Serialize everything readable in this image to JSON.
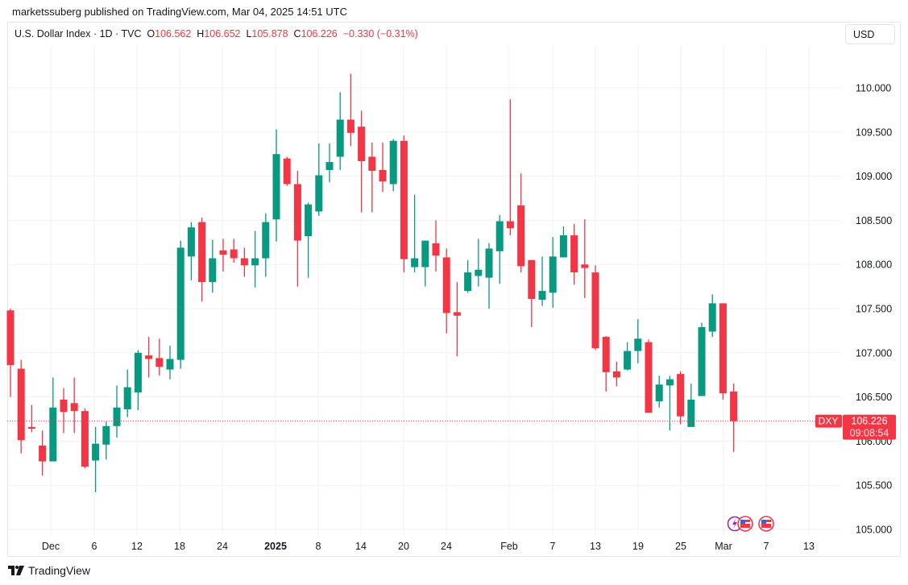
{
  "published": "marketssuberg published on TradingView.com, Mar 04, 2025 14:51 UTC",
  "legend": {
    "symbol": "U.S. Dollar Index · 1D · TVC",
    "o_label": "O",
    "o": "106.562",
    "h_label": "H",
    "h": "106.652",
    "l_label": "L",
    "l": "105.878",
    "c_label": "C",
    "c": "106.226",
    "change": "−0.330 (−0.31%)"
  },
  "currency_button": "USD",
  "footer": {
    "brand": "TradingView"
  },
  "colors": {
    "up": "#089981",
    "down": "#f23645",
    "grid": "#f0f1f3"
  },
  "chart_data": {
    "type": "candlestick",
    "title": "U.S. Dollar Index · 1D · TVC",
    "ylim": [
      104.9,
      110.45
    ],
    "grid": true,
    "y_ticks": [
      "110.000",
      "109.500",
      "109.000",
      "108.500",
      "108.000",
      "107.500",
      "107.000",
      "106.500",
      "106.000",
      "105.500",
      "105.000"
    ],
    "x_ticks": [
      {
        "label": "Dec"
      },
      {
        "label": "6"
      },
      {
        "label": "12"
      },
      {
        "label": "18"
      },
      {
        "label": "24"
      },
      {
        "label": "2025",
        "bold": true
      },
      {
        "label": "8"
      },
      {
        "label": "14"
      },
      {
        "label": "20"
      },
      {
        "label": "24"
      },
      {
        "label": "Feb"
      },
      {
        "label": "7"
      },
      {
        "label": "13"
      },
      {
        "label": "19"
      },
      {
        "label": "25"
      },
      {
        "label": "Mar"
      },
      {
        "label": "7"
      },
      {
        "label": "13"
      }
    ],
    "ohlc": [
      [
        107.48,
        107.5,
        106.5,
        106.86
      ],
      [
        106.82,
        106.92,
        105.86,
        106.01
      ],
      [
        106.16,
        106.41,
        106.1,
        106.14
      ],
      [
        105.95,
        106.12,
        105.61,
        105.77
      ],
      [
        105.77,
        106.72,
        105.77,
        106.38
      ],
      [
        106.47,
        106.6,
        106.09,
        106.33
      ],
      [
        106.43,
        106.72,
        106.09,
        106.34
      ],
      [
        106.34,
        106.37,
        105.69,
        105.71
      ],
      [
        105.78,
        106.16,
        105.42,
        105.97
      ],
      [
        105.96,
        106.22,
        105.79,
        106.17
      ],
      [
        106.17,
        106.63,
        106.04,
        106.38
      ],
      [
        106.36,
        106.81,
        106.27,
        106.61
      ],
      [
        106.55,
        107.03,
        106.35,
        107.0
      ],
      [
        106.97,
        107.18,
        106.72,
        106.93
      ],
      [
        106.94,
        107.16,
        106.74,
        106.84
      ],
      [
        106.81,
        107.08,
        106.7,
        106.93
      ],
      [
        106.92,
        108.27,
        106.82,
        108.19
      ],
      [
        108.09,
        108.48,
        107.82,
        108.42
      ],
      [
        108.48,
        108.53,
        107.58,
        107.8
      ],
      [
        107.8,
        108.28,
        107.68,
        108.07
      ],
      [
        108.16,
        108.29,
        107.92,
        108.11
      ],
      [
        108.17,
        108.29,
        108.02,
        108.07
      ],
      [
        108.07,
        108.19,
        107.86,
        107.99
      ],
      [
        107.99,
        108.38,
        107.74,
        108.07
      ],
      [
        108.07,
        108.58,
        107.86,
        108.48
      ],
      [
        108.51,
        109.53,
        108.26,
        109.25
      ],
      [
        109.2,
        109.22,
        108.89,
        108.91
      ],
      [
        108.91,
        109.06,
        107.75,
        108.27
      ],
      [
        108.32,
        108.7,
        107.85,
        108.68
      ],
      [
        108.6,
        109.37,
        108.55,
        109.01
      ],
      [
        109.07,
        109.37,
        108.93,
        109.16
      ],
      [
        109.22,
        109.95,
        109.07,
        109.64
      ],
      [
        109.64,
        110.16,
        109.34,
        109.49
      ],
      [
        109.56,
        109.74,
        108.59,
        109.17
      ],
      [
        109.22,
        109.38,
        108.59,
        109.06
      ],
      [
        109.07,
        109.38,
        108.82,
        108.94
      ],
      [
        108.91,
        109.42,
        108.83,
        109.4
      ],
      [
        109.4,
        109.46,
        107.91,
        108.06
      ],
      [
        107.97,
        108.79,
        107.91,
        108.07
      ],
      [
        107.97,
        108.27,
        107.75,
        108.27
      ],
      [
        108.24,
        108.5,
        107.92,
        108.1
      ],
      [
        108.08,
        108.18,
        107.22,
        107.45
      ],
      [
        107.46,
        107.8,
        106.96,
        107.42
      ],
      [
        107.7,
        108.05,
        107.68,
        107.91
      ],
      [
        107.87,
        108.29,
        107.75,
        107.94
      ],
      [
        107.85,
        108.24,
        107.5,
        108.18
      ],
      [
        108.15,
        108.56,
        107.78,
        108.49
      ],
      [
        108.49,
        109.87,
        108.33,
        108.41
      ],
      [
        108.67,
        109.03,
        107.91,
        107.98
      ],
      [
        108.05,
        108.05,
        107.29,
        107.61
      ],
      [
        107.6,
        108.09,
        107.53,
        107.7
      ],
      [
        107.68,
        108.31,
        107.51,
        108.09
      ],
      [
        108.08,
        108.43,
        108.08,
        108.33
      ],
      [
        108.33,
        108.46,
        107.77,
        107.91
      ],
      [
        108.0,
        108.51,
        107.62,
        107.96
      ],
      [
        107.91,
        107.99,
        107.03,
        107.05
      ],
      [
        107.18,
        107.19,
        106.56,
        106.78
      ],
      [
        106.79,
        106.9,
        106.62,
        106.72
      ],
      [
        106.81,
        107.12,
        106.8,
        107.02
      ],
      [
        107.02,
        107.38,
        106.88,
        107.16
      ],
      [
        107.12,
        107.15,
        106.32,
        106.32
      ],
      [
        106.45,
        106.74,
        106.38,
        106.64
      ],
      [
        106.63,
        106.74,
        106.12,
        106.7
      ],
      [
        106.76,
        106.79,
        106.19,
        106.28
      ],
      [
        106.16,
        106.65,
        106.16,
        106.47
      ],
      [
        106.51,
        107.34,
        106.51,
        107.29
      ],
      [
        107.24,
        107.66,
        107.18,
        107.56
      ],
      [
        107.56,
        107.56,
        106.47,
        106.54
      ],
      [
        106.562,
        106.652,
        105.878,
        106.226
      ]
    ],
    "last_price": {
      "symbol": "DXY",
      "price": "106.226",
      "countdown": "09:08:54",
      "value": 106.226
    }
  }
}
